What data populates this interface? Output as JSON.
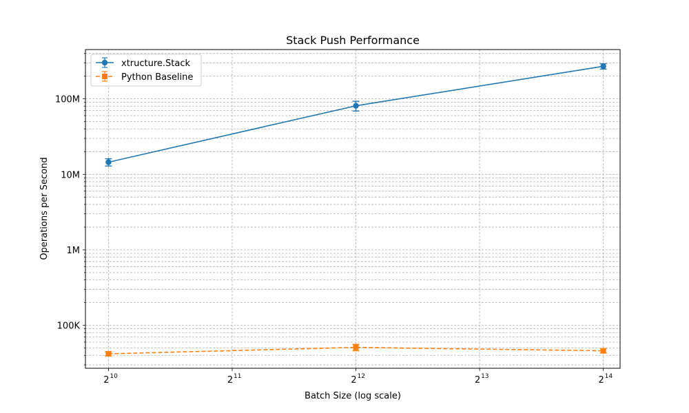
{
  "chart_data": {
    "type": "line",
    "title": "Stack Push Performance",
    "xlabel": "Batch Size (log scale)",
    "ylabel": "Operations per Second",
    "xscale": "log2",
    "yscale": "log10",
    "xlim": [
      900,
      18000
    ],
    "ylim": [
      27000,
      450000000
    ],
    "grid": true,
    "legend_position": "top-left",
    "x_ticks": [
      {
        "value": 1024,
        "base": "2",
        "exp": "10"
      },
      {
        "value": 2048,
        "base": "2",
        "exp": "11"
      },
      {
        "value": 4096,
        "base": "2",
        "exp": "12"
      },
      {
        "value": 8192,
        "base": "2",
        "exp": "13"
      },
      {
        "value": 16384,
        "base": "2",
        "exp": "14"
      }
    ],
    "y_ticks": [
      {
        "value": 100000,
        "label": "100K"
      },
      {
        "value": 1000000,
        "label": "1M"
      },
      {
        "value": 10000000,
        "label": "10M"
      },
      {
        "value": 100000000,
        "label": "100M"
      }
    ],
    "series": [
      {
        "name": "xtructure.Stack",
        "color": "#1f77b4",
        "marker": "circle",
        "line_style": "solid",
        "x": [
          1024,
          4096,
          16384
        ],
        "values": [
          14500000,
          81000000,
          270000000
        ],
        "error": [
          1600000,
          12000000,
          22000000
        ]
      },
      {
        "name": "Python Baseline",
        "color": "#ff7f0e",
        "marker": "square",
        "line_style": "dashed",
        "x": [
          1024,
          4096,
          16384
        ],
        "values": [
          42000,
          51000,
          46000
        ],
        "error": [
          2500,
          5000,
          3000
        ]
      }
    ]
  }
}
